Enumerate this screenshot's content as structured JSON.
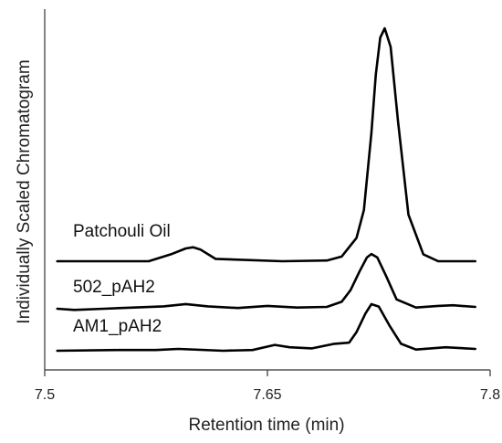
{
  "chart_data": {
    "type": "line",
    "title": "",
    "xlabel": "Retention time (min)",
    "ylabel": "Individually Scaled Chromatogram",
    "xlim": [
      7.5,
      7.8
    ],
    "xticks": [
      "7.5",
      "7.65",
      "7.8"
    ],
    "y_ticks_shown": false,
    "grid": false,
    "legend": "none",
    "line_color": "#000000",
    "series": [
      {
        "name": "Patchouli Oil",
        "x": [
          7.5085,
          7.57,
          7.585,
          7.595,
          7.6,
          7.605,
          7.615,
          7.66,
          7.69,
          7.7,
          7.71,
          7.715,
          7.72,
          7.723,
          7.726,
          7.729,
          7.733,
          7.738,
          7.745,
          7.755,
          7.765,
          7.775,
          7.79
        ],
        "y": [
          0.0,
          0.0,
          0.03,
          0.055,
          0.06,
          0.05,
          0.01,
          0.0,
          0.003,
          0.02,
          0.1,
          0.22,
          0.55,
          0.8,
          0.96,
          1.0,
          0.92,
          0.6,
          0.2,
          0.03,
          0.0,
          0.0,
          0.0
        ]
      },
      {
        "name": "502_pAH2",
        "x": [
          7.5085,
          7.52,
          7.54,
          7.56,
          7.58,
          7.595,
          7.61,
          7.63,
          7.65,
          7.67,
          7.69,
          7.7,
          7.706,
          7.712,
          7.717,
          7.72,
          7.724,
          7.73,
          7.737,
          7.75,
          7.765,
          7.775,
          7.79
        ],
        "y": [
          0.0,
          -0.005,
          0.0,
          0.005,
          0.01,
          0.02,
          0.01,
          0.003,
          0.012,
          0.005,
          0.008,
          0.03,
          0.08,
          0.16,
          0.22,
          0.235,
          0.22,
          0.14,
          0.04,
          0.005,
          0.012,
          0.015,
          0.008
        ]
      },
      {
        "name": "AM1_pAH2",
        "x": [
          7.5085,
          7.55,
          7.575,
          7.59,
          7.62,
          7.64,
          7.655,
          7.665,
          7.68,
          7.695,
          7.705,
          7.71,
          7.716,
          7.72,
          7.725,
          7.732,
          7.74,
          7.75,
          7.77,
          7.79
        ],
        "y": [
          0.0,
          0.003,
          0.003,
          0.008,
          0.0,
          0.003,
          0.025,
          0.015,
          0.01,
          0.03,
          0.035,
          0.08,
          0.16,
          0.2,
          0.19,
          0.11,
          0.03,
          0.005,
          0.015,
          0.008
        ]
      }
    ]
  }
}
